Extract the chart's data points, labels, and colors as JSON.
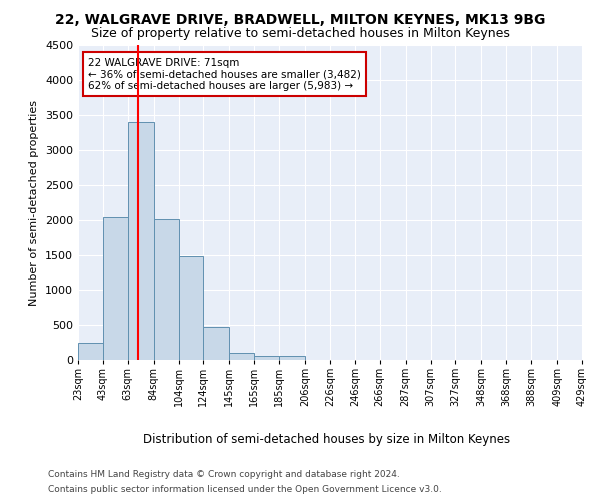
{
  "title1": "22, WALGRAVE DRIVE, BRADWELL, MILTON KEYNES, MK13 9BG",
  "title2": "Size of property relative to semi-detached houses in Milton Keynes",
  "xlabel": "Distribution of semi-detached houses by size in Milton Keynes",
  "ylabel": "Number of semi-detached properties",
  "footer1": "Contains HM Land Registry data © Crown copyright and database right 2024.",
  "footer2": "Contains public sector information licensed under the Open Government Licence v3.0.",
  "annotation_line1": "22 WALGRAVE DRIVE: 71sqm",
  "annotation_line2": "← 36% of semi-detached houses are smaller (3,482)",
  "annotation_line3": "62% of semi-detached houses are larger (5,983) →",
  "bar_edges": [
    23,
    43,
    63,
    84,
    104,
    124,
    145,
    165,
    185,
    206,
    226,
    246,
    266,
    287,
    307,
    327,
    348,
    368,
    388,
    409,
    429
  ],
  "bar_heights": [
    250,
    2050,
    3400,
    2020,
    1480,
    470,
    100,
    60,
    55,
    5,
    2,
    1,
    1,
    0,
    0,
    0,
    0,
    0,
    0,
    0
  ],
  "bar_color": "#c8d8e8",
  "bar_edge_color": "#6090b0",
  "red_line_x": 71,
  "ylim": [
    0,
    4500
  ],
  "yticks": [
    0,
    500,
    1000,
    1500,
    2000,
    2500,
    3000,
    3500,
    4000,
    4500
  ],
  "bg_color": "#e8eef8",
  "grid_color": "#ffffff",
  "annotation_box_color": "#ffffff",
  "annotation_box_edge": "#cc0000",
  "title1_fontsize": 10,
  "title2_fontsize": 9,
  "fig_bg": "#ffffff"
}
